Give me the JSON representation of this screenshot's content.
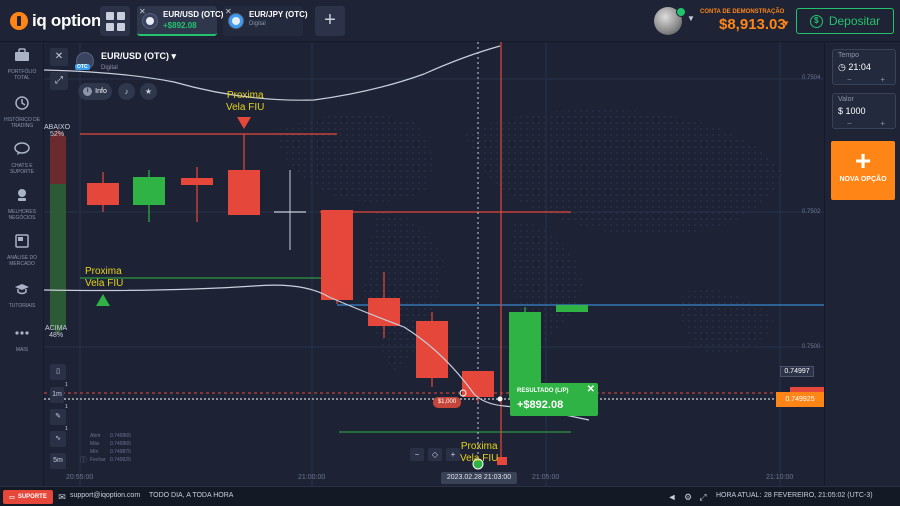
{
  "app": {
    "logo_text": "iq option"
  },
  "tabs": [
    {
      "name": "EUR/USD (OTC)",
      "sub": "+$892.08"
    },
    {
      "name": "EUR/JPY (OTC)",
      "sub": "Digital"
    }
  ],
  "account": {
    "label": "CONTA DE DEMONSTRAÇÃO",
    "balance": "$8,913.03",
    "deposit_label": "Depositar"
  },
  "sidebar": {
    "items": [
      {
        "label": "PORTFÓLIO TOTAL"
      },
      {
        "label": "HISTÓRICO DE TRADING"
      },
      {
        "label": "CHATS E SUPORTE"
      },
      {
        "label": "MELHORES NEGÓCIOS"
      },
      {
        "label": "ANÁLISE DO MERCADO"
      },
      {
        "label": "TUTORIAIS"
      },
      {
        "label": "MAIS"
      }
    ]
  },
  "asset": {
    "name": "EUR/USD (OTC)",
    "otc_badge": "OTC",
    "type": "Digital",
    "info_label": "Info"
  },
  "chart": {
    "sentiment_down_label": "ABAIXO",
    "sentiment_down_pct": "52%",
    "sentiment_up_label": "ACIMA",
    "sentiment_up_pct": "48%",
    "label_top": "Proxima\nVela FIU",
    "label_left": "Proxima\nVela FIU",
    "label_bottom": "Proxima\nVela FIU",
    "timeframe": "1m",
    "zoom_period": "5m",
    "trade_amount": "$1,000",
    "result_label": "RESULTADO (L/P)",
    "result_value": "+$892.08",
    "current_price": "0.749925",
    "white_price": "0.74997",
    "current_time": "2023.02.28 21:03:00",
    "ohlc": {
      "abrir_label": "Abrir",
      "abrir": "0.749965",
      "max_label": "Máx",
      "max": "0.749965",
      "min_label": "Mín",
      "min": "0.749875",
      "fechar_label": "Fechar",
      "fechar": "0.749925"
    },
    "price_ticks": [
      "0.7504",
      "0.7502",
      "0.7500"
    ],
    "time_ticks": [
      "20:55:00",
      "21:00:00",
      "21:05:00",
      "21:10:00"
    ]
  },
  "right_panel": {
    "time_label": "Tempo",
    "time_value": "21:04",
    "value_label": "Valor",
    "value_value": "1000",
    "currency": "$",
    "new_option_label": "NOVA OPÇÃO"
  },
  "bottom": {
    "support_label": "SUPORTE",
    "email": "support@iqoption.com",
    "hours": "TODO DIA, A TODA HORA",
    "current_time_label": "HORA ATUAL:",
    "current_time": "28 FEVEREIRO, 21:05:02 (UTC-3)"
  },
  "colors": {
    "up": "#2fb344",
    "down": "#e5483a",
    "accent": "#ff8516",
    "label": "#e6d21a"
  }
}
